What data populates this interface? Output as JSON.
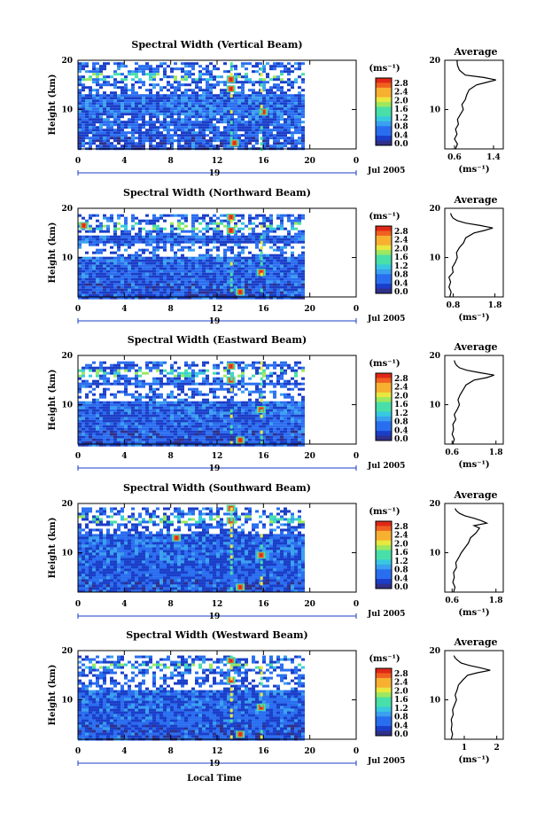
{
  "page": {
    "xlabel": "Local Time",
    "date_label": "Jul 2005",
    "day_label": "19"
  },
  "colorbar": {
    "unit_label": "(ms⁻¹)",
    "ticks": [
      "2.8",
      "2.4",
      "2.0",
      "1.6",
      "1.2",
      "0.8",
      "0.4",
      "0.0"
    ],
    "colors": [
      "#30308a",
      "#1a3ec8",
      "#2a6ef0",
      "#3aa0f0",
      "#38c8e0",
      "#48e0a8",
      "#9ce860",
      "#e8e840",
      "#f8b030",
      "#f06020",
      "#e02818"
    ]
  },
  "chart_data": [
    {
      "type": "heatmap",
      "title": "Spectral Width (Vertical Beam)",
      "xlabel": "",
      "ylabel": "Height (km)",
      "x_ticks": [
        "0",
        "4",
        "8",
        "12",
        "16",
        "20",
        "0"
      ],
      "xlim": [
        0,
        24
      ],
      "y_ticks": [
        "20",
        "10"
      ],
      "ylim": [
        2,
        20
      ],
      "data_end_hour": 19.5,
      "top_km": 19.6,
      "gap_bands": [],
      "sparse_band": [
        13.5,
        19.6
      ],
      "white_speckles": true,
      "green_bands": [
        16.3,
        17.5
      ],
      "red_spots": [
        [
          13.2,
          16.1
        ],
        [
          13.2,
          14.2
        ],
        [
          13.5,
          3.2
        ],
        [
          16.0,
          9.5
        ]
      ],
      "profile": {
        "title": "Average",
        "xlabel": "(ms⁻¹)",
        "x_ticks": [
          "0.6",
          "1.4"
        ],
        "xlim": [
          0.4,
          1.6
        ],
        "y_ticks": [
          "20",
          "10"
        ],
        "heights": [
          2,
          3,
          4,
          5,
          6,
          7,
          8,
          9,
          10,
          11,
          12,
          13,
          14,
          15,
          15.5,
          16,
          16.5,
          17,
          18,
          19,
          20
        ],
        "values": [
          0.62,
          0.66,
          0.6,
          0.65,
          0.62,
          0.68,
          0.66,
          0.72,
          0.78,
          0.75,
          0.82,
          0.85,
          0.9,
          1.05,
          1.25,
          1.45,
          1.2,
          0.82,
          0.7,
          0.66,
          0.65
        ]
      }
    },
    {
      "type": "heatmap",
      "title": "Spectral Width (Northward Beam)",
      "xlabel": "",
      "ylabel": "Height (km)",
      "x_ticks": [
        "0",
        "4",
        "8",
        "12",
        "16",
        "20",
        "0"
      ],
      "xlim": [
        0,
        24
      ],
      "y_ticks": [
        "20",
        "10"
      ],
      "ylim": [
        2,
        20
      ],
      "data_end_hour": 19.5,
      "top_km": 18.8,
      "gap_bands": [
        [
          10.5,
          13.2
        ]
      ],
      "sparse_band": [
        14.5,
        18.8
      ],
      "white_speckles": false,
      "green_bands": [
        15.8,
        17.4
      ],
      "red_spots": [
        [
          13.2,
          18.2
        ],
        [
          13.2,
          15.5
        ],
        [
          14.0,
          3.0
        ],
        [
          15.8,
          7.0
        ],
        [
          0.5,
          16.5
        ]
      ],
      "profile": {
        "title": "Average",
        "xlabel": "(ms⁻¹)",
        "x_ticks": [
          "0.8",
          "1.8"
        ],
        "xlim": [
          0.6,
          2.0
        ],
        "y_ticks": [
          "20",
          "10"
        ],
        "heights": [
          2,
          3,
          4,
          5,
          6,
          7,
          8,
          9,
          10,
          11,
          12,
          13,
          14,
          15,
          15.5,
          16,
          16.5,
          17,
          17.5,
          18,
          18.5,
          19
        ],
        "values": [
          0.72,
          0.75,
          0.7,
          0.74,
          0.7,
          0.8,
          0.78,
          0.85,
          0.9,
          0.88,
          0.95,
          1.05,
          1.1,
          1.3,
          1.55,
          1.75,
          1.45,
          1.1,
          0.9,
          0.8,
          0.76,
          0.74
        ]
      }
    },
    {
      "type": "heatmap",
      "title": "Spectral Width (Eastward Beam)",
      "xlabel": "",
      "ylabel": "Height (km)",
      "x_ticks": [
        "0",
        "4",
        "8",
        "12",
        "16",
        "20",
        "0"
      ],
      "xlim": [
        0,
        24
      ],
      "y_ticks": [
        "20",
        "10"
      ],
      "ylim": [
        2,
        20
      ],
      "data_end_hour": 19.5,
      "top_km": 18.8,
      "gap_bands": [
        [
          11.0,
          14.0
        ]
      ],
      "sparse_band": [
        14.5,
        18.8
      ],
      "white_speckles": false,
      "green_bands": [
        15.8,
        17.2
      ],
      "red_spots": [
        [
          13.2,
          17.8
        ],
        [
          13.2,
          15.0
        ],
        [
          14.0,
          2.8
        ],
        [
          15.8,
          9.0
        ]
      ],
      "profile": {
        "title": "Average",
        "xlabel": "(ms⁻¹)",
        "x_ticks": [
          "0.6",
          "1.8"
        ],
        "xlim": [
          0.4,
          2.0
        ],
        "y_ticks": [
          "20",
          "10"
        ],
        "heights": [
          2,
          3,
          4,
          5,
          6,
          7,
          8,
          9,
          10,
          11,
          12,
          13,
          14,
          15,
          15.5,
          16,
          16.5,
          17,
          17.5,
          18,
          18.5,
          19
        ],
        "values": [
          0.62,
          0.66,
          0.6,
          0.64,
          0.62,
          0.7,
          0.66,
          0.74,
          0.8,
          0.76,
          0.82,
          0.9,
          0.98,
          1.2,
          1.55,
          1.75,
          1.35,
          1.0,
          0.8,
          0.72,
          0.68,
          0.66
        ]
      }
    },
    {
      "type": "heatmap",
      "title": "Spectral Width (Southward Beam)",
      "xlabel": "",
      "ylabel": "Height (km)",
      "x_ticks": [
        "0",
        "4",
        "8",
        "12",
        "16",
        "20",
        "0"
      ],
      "xlim": [
        0,
        24
      ],
      "y_ticks": [
        "20",
        "10"
      ],
      "ylim": [
        2,
        20
      ],
      "data_end_hour": 19.5,
      "top_km": 19.2,
      "gap_bands": [],
      "sparse_band": [
        14.0,
        19.2
      ],
      "white_speckles": false,
      "green_bands": [
        16.0,
        17.8
      ],
      "red_spots": [
        [
          13.2,
          19.0
        ],
        [
          13.2,
          16.5
        ],
        [
          14.0,
          3.0
        ],
        [
          15.8,
          9.5
        ],
        [
          8.5,
          13.0
        ]
      ],
      "profile": {
        "title": "Average",
        "xlabel": "(ms⁻¹)",
        "x_ticks": [
          "0.6",
          "1.8"
        ],
        "xlim": [
          0.4,
          2.0
        ],
        "y_ticks": [
          "20",
          "10"
        ],
        "heights": [
          2,
          3,
          4,
          5,
          6,
          7,
          8,
          9,
          10,
          11,
          12,
          13,
          14,
          15,
          15.5,
          16,
          16.5,
          17,
          17.5,
          18,
          18.5,
          19
        ],
        "values": [
          0.64,
          0.68,
          0.62,
          0.66,
          0.64,
          0.72,
          0.7,
          0.78,
          0.85,
          0.95,
          1.05,
          1.1,
          1.25,
          1.35,
          1.2,
          1.55,
          1.4,
          1.2,
          0.95,
          0.8,
          0.72,
          0.68
        ]
      }
    },
    {
      "type": "heatmap",
      "title": "Spectral Width (Westward Beam)",
      "xlabel": "Local Time",
      "ylabel": "Height (km)",
      "x_ticks": [
        "0",
        "4",
        "8",
        "12",
        "16",
        "20",
        "0"
      ],
      "xlim": [
        0,
        24
      ],
      "y_ticks": [
        "20",
        "10"
      ],
      "ylim": [
        2,
        20
      ],
      "data_end_hour": 19.5,
      "top_km": 19.0,
      "gap_bands": [
        [
          12.5,
          15.5
        ]
      ],
      "sparse_band": [
        15.5,
        19.0
      ],
      "white_speckles": false,
      "green_bands": [
        16.5,
        17.8
      ],
      "red_spots": [
        [
          13.2,
          18.0
        ],
        [
          13.2,
          14.0
        ],
        [
          14.0,
          3.0
        ],
        [
          15.8,
          8.5
        ]
      ],
      "profile": {
        "title": "Average",
        "xlabel": "(ms⁻¹)",
        "x_ticks": [
          "1",
          "2"
        ],
        "xlim": [
          0.4,
          2.2
        ],
        "y_ticks": [
          "20",
          "10"
        ],
        "heights": [
          2,
          3,
          4,
          5,
          6,
          7,
          8,
          9,
          10,
          11,
          12,
          13,
          14,
          15,
          15.5,
          16,
          16.5,
          17,
          17.5,
          18,
          18.5,
          19
        ],
        "values": [
          0.6,
          0.64,
          0.6,
          0.62,
          0.6,
          0.66,
          0.64,
          0.7,
          0.76,
          0.72,
          0.78,
          0.82,
          0.95,
          1.1,
          1.4,
          1.8,
          1.5,
          1.15,
          0.9,
          0.8,
          0.72,
          0.68
        ]
      }
    }
  ]
}
